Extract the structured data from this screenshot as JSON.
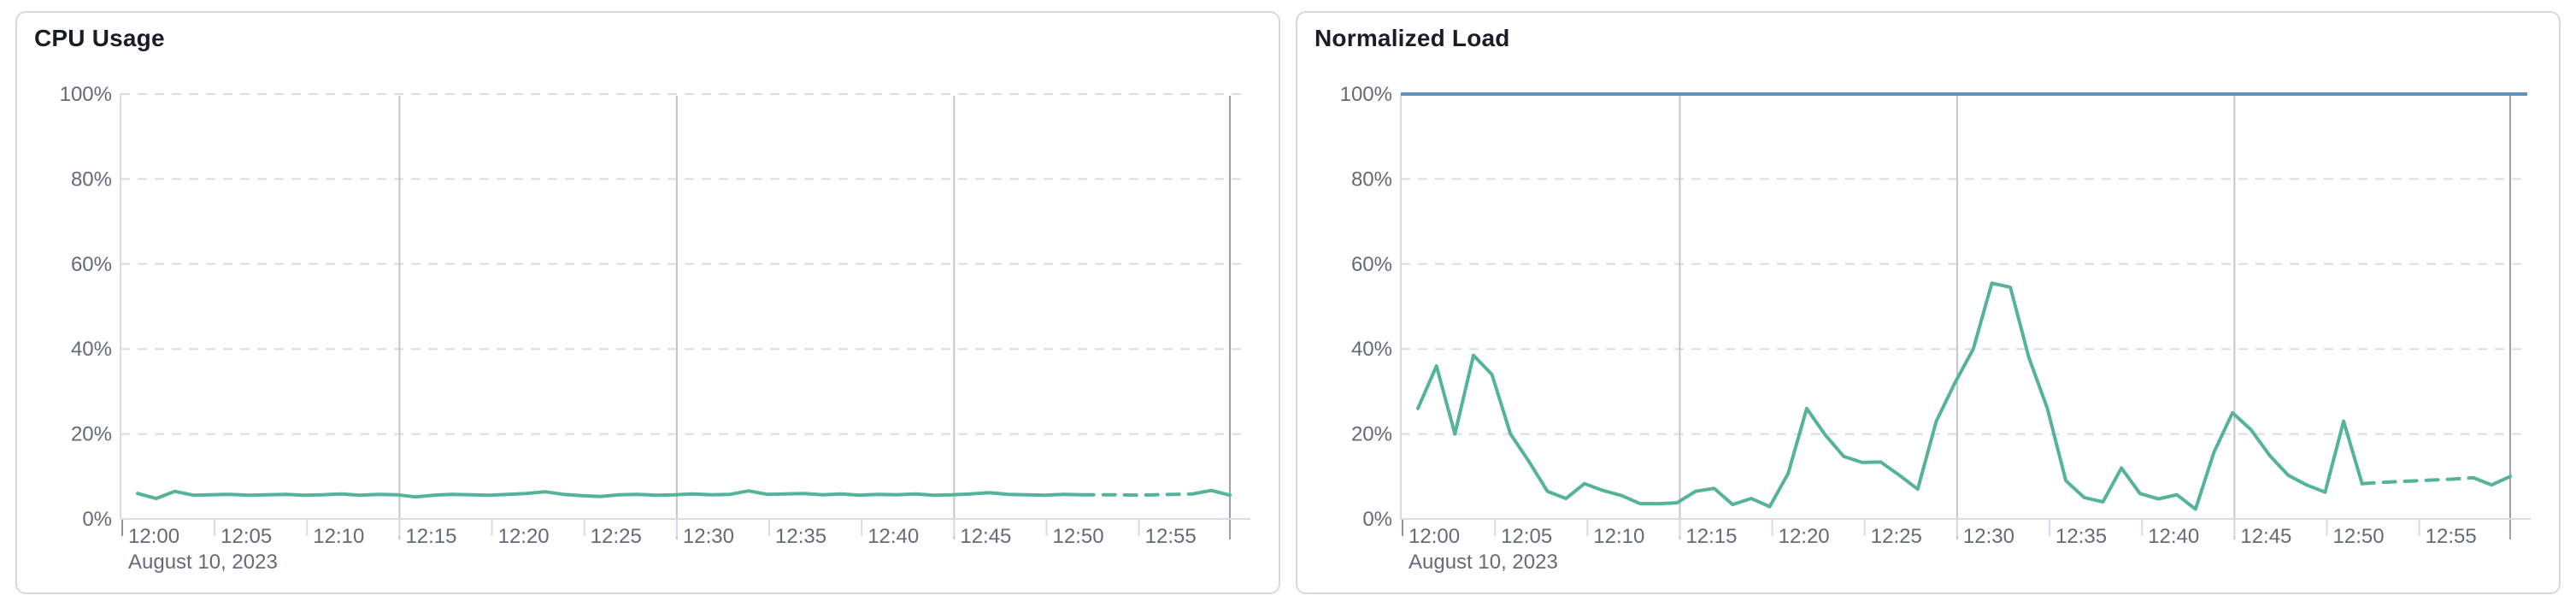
{
  "page": {
    "background": "#ffffff",
    "panel_border_color": "#d3dae6"
  },
  "panels": [
    {
      "name": "cpu-usage",
      "title": "CPU Usage"
    },
    {
      "name": "normalized-load",
      "title": "Normalized Load"
    }
  ],
  "chart_data": [
    {
      "type": "line",
      "title": "CPU Usage",
      "x_start": "12:00",
      "x_interval_minutes": 1,
      "x_date_context": "August 10, 2023",
      "x_tick_labels": [
        "12:00",
        "12:05",
        "12:10",
        "12:15",
        "12:20",
        "12:25",
        "12:30",
        "12:35",
        "12:40",
        "12:45",
        "12:50",
        "12:55"
      ],
      "y_tick_labels": [
        "0%",
        "20%",
        "40%",
        "60%",
        "80%",
        "100%"
      ],
      "ylim": [
        0,
        100
      ],
      "y_unit": "%",
      "grid": true,
      "legend": "none",
      "vertical_gridlines_at": [
        "12:15",
        "12:30",
        "12:45"
      ],
      "threshold_line": null,
      "series": [
        {
          "name": "cpu-usage",
          "color": "#54B399",
          "dashed_from_index": 51,
          "dashed_to_index": 57,
          "values": [
            6.0,
            4.8,
            6.5,
            5.6,
            5.7,
            5.8,
            5.6,
            5.7,
            5.8,
            5.6,
            5.7,
            5.9,
            5.6,
            5.8,
            5.7,
            5.2,
            5.6,
            5.8,
            5.7,
            5.6,
            5.8,
            6.0,
            6.4,
            5.8,
            5.5,
            5.3,
            5.7,
            5.8,
            5.6,
            5.7,
            5.9,
            5.7,
            5.8,
            6.6,
            5.8,
            5.9,
            6.0,
            5.7,
            5.9,
            5.6,
            5.8,
            5.7,
            5.9,
            5.6,
            5.7,
            5.9,
            6.2,
            5.8,
            5.7,
            5.6,
            5.8,
            5.7,
            5.7,
            5.7,
            5.6,
            5.7,
            5.8,
            5.9,
            6.7,
            5.6
          ]
        }
      ]
    },
    {
      "type": "line",
      "title": "Normalized Load",
      "x_start": "12:00",
      "x_interval_minutes": 1,
      "x_date_context": "August 10, 2023",
      "x_tick_labels": [
        "12:00",
        "12:05",
        "12:10",
        "12:15",
        "12:20",
        "12:25",
        "12:30",
        "12:35",
        "12:40",
        "12:45",
        "12:50",
        "12:55"
      ],
      "y_tick_labels": [
        "0%",
        "20%",
        "40%",
        "60%",
        "80%",
        "100%"
      ],
      "ylim": [
        0,
        100
      ],
      "y_unit": "%",
      "grid": true,
      "legend": "none",
      "vertical_gridlines_at": [
        "12:15",
        "12:30",
        "12:45"
      ],
      "threshold_line": {
        "value": 100,
        "color": "#6092C0"
      },
      "series": [
        {
          "name": "normalized-load",
          "color": "#54B399",
          "dashed_from_index": 51,
          "dashed_to_index": 57,
          "values": [
            26,
            36,
            20,
            38.5,
            34,
            20,
            13.5,
            6.5,
            4.8,
            8.3,
            6.7,
            5.5,
            3.6,
            3.6,
            3.8,
            6.5,
            7.2,
            3.4,
            4.8,
            2.9,
            10.7,
            26,
            19.8,
            14.7,
            13.3,
            13.4,
            10.3,
            7,
            23,
            32,
            40,
            55.5,
            54.5,
            38,
            26,
            9,
            5,
            4,
            12,
            6,
            4.7,
            5.7,
            2.3,
            15.7,
            25,
            21,
            15,
            10.3,
            8,
            6.3,
            23,
            8.3,
            8.6,
            8.8,
            9,
            9.2,
            9.4,
            9.7,
            8,
            10
          ]
        }
      ]
    }
  ],
  "style": {
    "series_color": "#54B399",
    "threshold_color": "#6092C0",
    "grid_dashed_color": "#d9dce8",
    "grid_vertical_color": "#c2c5ce",
    "end_line_color": "#9aa0aa",
    "axis_line_color": "#d9dce8",
    "tick_label_color": "#646a77",
    "title_color": "#1a1d26"
  }
}
